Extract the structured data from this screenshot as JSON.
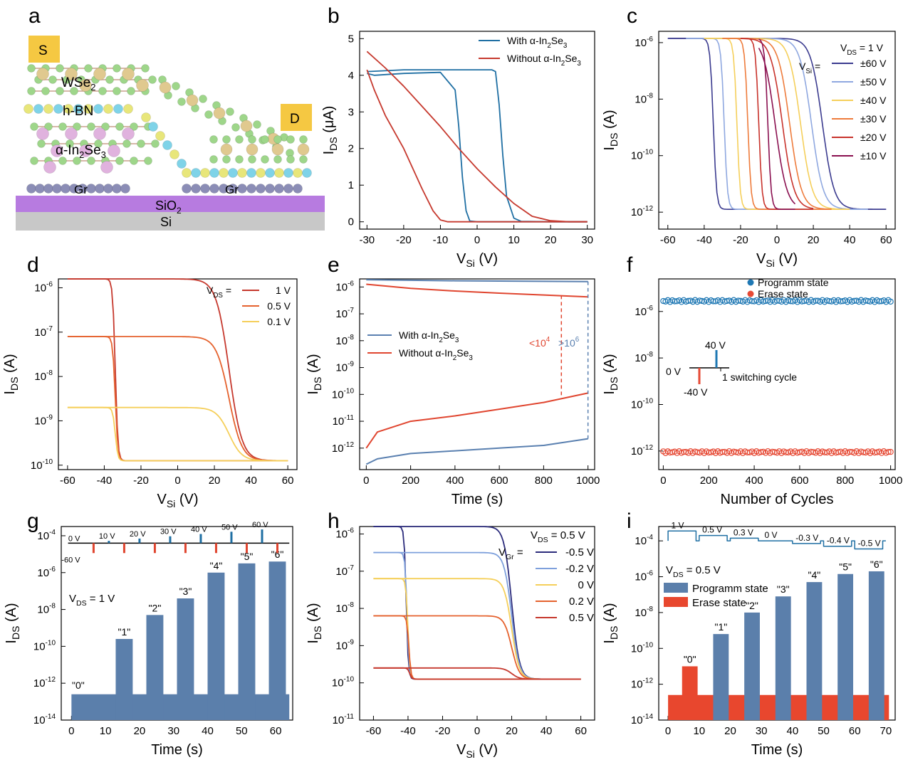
{
  "panels": {
    "a": {
      "label": "a",
      "texts": {
        "s": "S",
        "d": "D",
        "wse2": "WSe",
        "wse2_sub": "2",
        "hbn": "h-BN",
        "inse_a": "α-In",
        "inse_sub1": "2",
        "inse_b": "Se",
        "inse_sub2": "3",
        "gr1": "Gr",
        "gr2": "Gr",
        "sio2": "SiO",
        "sio2_sub": "2",
        "si": "Si"
      },
      "colors": {
        "s_pad": "#f5c842",
        "d_pad": "#f5c842",
        "sio2": "#b77be0",
        "si": "#c8c8c8",
        "atom_green": "#9ed68a",
        "atom_tan": "#e0c98f",
        "atom_pink": "#e0b2de",
        "atom_cyan": "#7fd3e8",
        "atom_yellow": "#e8e67a",
        "atom_gr": "#8b8db6"
      }
    },
    "b": {
      "label": "b",
      "xlabel": "V",
      "xlabel_sub": "Si",
      "xlabel_unit": " (V)",
      "ylabel": "I",
      "ylabel_sub": "DS",
      "ylabel_unit": " (μA)",
      "xticks": [
        "-30",
        "-20",
        "-10",
        "0",
        "10",
        "20",
        "30"
      ],
      "yticks": [
        "0",
        "1",
        "2",
        "3",
        "4",
        "5"
      ],
      "legend": [
        {
          "a": "With α-In",
          "b": "2",
          "c": "Se",
          "d": "3",
          "color": "#1f6fa3"
        },
        {
          "a": "Without α-In",
          "b": "2",
          "c": "Se",
          "d": "3",
          "color": "#c6392e"
        }
      ]
    },
    "c": {
      "label": "c",
      "xlabel": "V",
      "xlabel_sub": "Si",
      "xlabel_unit": " (V)",
      "ylabel": "I",
      "ylabel_sub": "DS",
      "ylabel_unit": " (A)",
      "xticks": [
        "-60",
        "-40",
        "-20",
        "0",
        "20",
        "40",
        "60"
      ],
      "yticks": [
        "10",
        "10",
        "10",
        "10"
      ],
      "yexp": [
        "-12",
        "-10",
        "-8",
        "-6"
      ],
      "header": {
        "a": "V",
        "b": "DS",
        "c": " = 1 V"
      },
      "vsi": {
        "a": "V",
        "b": "Si",
        "c": " ="
      },
      "legend": [
        {
          "t": "±60 V",
          "color": "#3b3b8f"
        },
        {
          "t": "±50 V",
          "color": "#8fa8e0"
        },
        {
          "t": "±40 V",
          "color": "#f5cf5a"
        },
        {
          "t": "±30 V",
          "color": "#ee7b3b"
        },
        {
          "t": "±20 V",
          "color": "#c8322b"
        },
        {
          "t": "±10 V",
          "color": "#8a0f4f"
        }
      ]
    },
    "d": {
      "label": "d",
      "xlabel": "V",
      "xlabel_sub": "Si",
      "xlabel_unit": " (V)",
      "ylabel": "I",
      "ylabel_sub": "DS",
      "ylabel_unit": " (A)",
      "xticks": [
        "-60",
        "-40",
        "-20",
        "0",
        "20",
        "40",
        "60"
      ],
      "yticks": [
        "10",
        "10",
        "10",
        "10",
        "10"
      ],
      "yexp": [
        "-10",
        "-9",
        "-8",
        "-7",
        "-6"
      ],
      "header": {
        "a": "V",
        "b": "DS",
        "c": " ="
      },
      "legend": [
        {
          "t": "1 V",
          "color": "#c6392e"
        },
        {
          "t": "0.5 V",
          "color": "#e5622e"
        },
        {
          "t": "0.1 V",
          "color": "#f5cf5a"
        }
      ]
    },
    "e": {
      "label": "e",
      "xlabel": "Time (s)",
      "ylabel": "I",
      "ylabel_sub": "DS",
      "ylabel_unit": " (A)",
      "xticks": [
        "0",
        "200",
        "400",
        "600",
        "800",
        "1000"
      ],
      "yticks": [
        "10",
        "10",
        "10",
        "10",
        "10",
        "10",
        "10"
      ],
      "yexp": [
        "-12",
        "-11",
        "-10",
        "-9",
        "-8",
        "-7",
        "-6"
      ],
      "legend": [
        {
          "a": "With α-In",
          "b": "2",
          "c": "Se",
          "d": "3",
          "color": "#5a80b0"
        },
        {
          "a": "Without α-In",
          "b": "2",
          "c": "Se",
          "d": "3",
          "color": "#e0452f"
        }
      ],
      "ann1": {
        "a": "<10",
        "b": "4"
      },
      "ann2": {
        "a": ">10",
        "b": "6"
      }
    },
    "f": {
      "label": "f",
      "xlabel": "Number of Cycles",
      "ylabel": "I",
      "ylabel_sub": "DS",
      "ylabel_unit": " (A)",
      "xticks": [
        "0",
        "200",
        "400",
        "600",
        "800",
        "1000"
      ],
      "yticks": [
        "10",
        "10",
        "10",
        "10"
      ],
      "yexp": [
        "-12",
        "-10",
        "-8",
        "-6"
      ],
      "legend": [
        {
          "t": "Programm state",
          "color": "#1f78b4"
        },
        {
          "t": "Erase state",
          "color": "#e64a35"
        }
      ],
      "inset": {
        "v0": "0 V",
        "v40": "40 V",
        "vm40": "-40 V",
        "cycle": "1 switching cycle"
      }
    },
    "g": {
      "label": "g",
      "xlabel": "Time (s)",
      "ylabel": "I",
      "ylabel_sub": "DS",
      "ylabel_unit": " (A)",
      "xticks": [
        "0",
        "10",
        "20",
        "30",
        "40",
        "50",
        "60"
      ],
      "yticks": [
        "10",
        "10",
        "10",
        "10",
        "10",
        "10"
      ],
      "yexp": [
        "-14",
        "-12",
        "-10",
        "-8",
        "-6",
        "-4"
      ],
      "vds": {
        "a": "V",
        "b": "DS",
        "c": " = 1 V"
      },
      "pulses": [
        "0 V",
        "10 V",
        "20 V",
        "30 V",
        "40 V",
        "50 V",
        "60 V"
      ],
      "neg": "-60 V",
      "states": [
        "\"0\"",
        "\"1\"",
        "\"2\"",
        "\"3\"",
        "\"4\"",
        "\"5\"",
        "\"6\""
      ]
    },
    "h": {
      "label": "h",
      "xlabel": "V",
      "xlabel_sub": "Si",
      "xlabel_unit": " (V)",
      "ylabel": "I",
      "ylabel_sub": "DS",
      "ylabel_unit": " (A)",
      "xticks": [
        "-60",
        "-40",
        "-20",
        "0",
        "20",
        "40",
        "60"
      ],
      "yticks": [
        "10",
        "10",
        "10",
        "10",
        "10",
        "10"
      ],
      "yexp": [
        "-11",
        "-10",
        "-9",
        "-8",
        "-7",
        "-6"
      ],
      "header": {
        "a": "V",
        "b": "DS",
        "c": " = 0.5 V"
      },
      "vgr": {
        "a": "V",
        "b": "Gr",
        "c": " ="
      },
      "legend": [
        {
          "t": "-0.5 V",
          "color": "#2c2c7c"
        },
        {
          "t": "-0.2 V",
          "color": "#7ea0dc"
        },
        {
          "t": "0 V",
          "color": "#f5cf5a"
        },
        {
          "t": "0.2 V",
          "color": "#e5622e"
        },
        {
          "t": "0.5 V",
          "color": "#c6392e"
        }
      ]
    },
    "i": {
      "label": "i",
      "xlabel": "Time (s)",
      "ylabel": "I",
      "ylabel_sub": "DS",
      "ylabel_unit": " (A)",
      "xticks": [
        "0",
        "10",
        "20",
        "30",
        "40",
        "50",
        "60",
        "70"
      ],
      "yticks": [
        "10",
        "10",
        "10",
        "10",
        "10",
        "10"
      ],
      "yexp": [
        "-14",
        "-12",
        "-10",
        "-8",
        "-6",
        "-4"
      ],
      "vds": {
        "a": "V",
        "b": "DS",
        "c": " = 0.5 V"
      },
      "pulses": [
        "1 V",
        "0.5 V",
        "0.3 V",
        "0 V",
        "-0.3 V",
        "-0.4 V",
        "-0.5 V"
      ],
      "legend": [
        {
          "t": "Programm state",
          "color": "#5b7fab"
        },
        {
          "t": "Erase state",
          "color": "#e8472e"
        }
      ],
      "states": [
        "\"0\"",
        "\"1\"",
        "\"2\"",
        "\"3\"",
        "\"4\"",
        "\"5\"",
        "\"6\""
      ]
    }
  },
  "chart_data": [
    {
      "panel": "b",
      "type": "line",
      "xlim": [
        -32,
        32
      ],
      "ylim": [
        -0.2,
        5.2
      ],
      "xlabel": "VSi (V)",
      "ylabel": "IDS (μA)",
      "series": [
        {
          "name": "With α-In2Se3",
          "color": "#1f6fa3",
          "x": [
            -30,
            -28,
            -20,
            -10,
            -6,
            -5,
            -4,
            -3,
            -2,
            0,
            10,
            20,
            30
          ],
          "y": [
            4.05,
            4.0,
            4.05,
            4.08,
            3.6,
            2.6,
            1.2,
            0.3,
            0.02,
            0,
            0,
            0,
            0
          ]
        },
        {
          "name": "With α-In2Se3 (return)",
          "color": "#1f6fa3",
          "x": [
            30,
            20,
            12,
            10,
            8,
            7,
            6,
            5,
            4,
            0,
            -10,
            -20,
            -30
          ],
          "y": [
            0,
            0,
            0.01,
            0.1,
            0.7,
            1.8,
            3.2,
            4.1,
            4.15,
            4.15,
            4.15,
            4.15,
            4.1
          ]
        },
        {
          "name": "Without α-In2Se3",
          "color": "#c6392e",
          "x": [
            -30,
            -25,
            -20,
            -15,
            -10,
            -5,
            0,
            5,
            10,
            15,
            20,
            25,
            30
          ],
          "y": [
            4.65,
            4.2,
            3.7,
            3.15,
            2.6,
            2.0,
            1.45,
            0.95,
            0.5,
            0.15,
            0.03,
            0,
            0
          ]
        },
        {
          "name": "Without α-In2Se3 (return)",
          "color": "#c6392e",
          "x": [
            30,
            20,
            10,
            0,
            -5,
            -8,
            -10,
            -12,
            -15,
            -20,
            -25,
            -28,
            -30
          ],
          "y": [
            0,
            0,
            0,
            0,
            0,
            0,
            0.05,
            0.3,
            0.9,
            2.0,
            2.9,
            3.6,
            4.15
          ]
        }
      ]
    },
    {
      "panel": "c",
      "type": "line",
      "xlim": [
        -65,
        65
      ],
      "ylog": true,
      "ylim_exp": [
        -12.6,
        -5.6
      ],
      "xlabel": "VSi (V)",
      "ylabel": "IDS (A)",
      "series": [
        {
          "name": "±60 V",
          "color": "#3b3b8f",
          "vth_fwd": -35,
          "vth_rev": 25
        },
        {
          "name": "±50 V",
          "color": "#8fa8e0",
          "vth_fwd": -29,
          "vth_rev": 19
        },
        {
          "name": "±40 V",
          "color": "#f5cf5a",
          "vth_fwd": -22,
          "vth_rev": 13
        },
        {
          "name": "±30 V",
          "color": "#ee7b3b",
          "vth_fwd": -16,
          "vth_rev": 7
        },
        {
          "name": "±20 V",
          "color": "#c8322b",
          "vth_fwd": -10,
          "vth_rev": 3
        },
        {
          "name": "±10 V",
          "color": "#8a0f4f",
          "vth_fwd": -5,
          "vth_rev": -1
        }
      ]
    },
    {
      "panel": "d",
      "type": "line",
      "xlim": [
        -65,
        65
      ],
      "ylog": true,
      "ylim_exp": [
        -10.1,
        -5.8
      ],
      "xlabel": "VSi (V)",
      "ylabel": "IDS (A)",
      "series": [
        {
          "name": "1 V",
          "color": "#c6392e",
          "on": -5.8,
          "off": -9.9
        },
        {
          "name": "0.5 V",
          "color": "#e5622e",
          "on": -7.1,
          "off": -9.9
        },
        {
          "name": "0.1 V",
          "color": "#f5cf5a",
          "on": -8.7,
          "off": -9.9
        }
      ]
    },
    {
      "panel": "e",
      "type": "line",
      "xlim": [
        -30,
        1030
      ],
      "ylog": true,
      "ylim_exp": [
        -12.8,
        -5.7
      ],
      "xlabel": "Time (s)",
      "ylabel": "IDS (A)",
      "series": [
        {
          "name": "With α-In2Se3 (on)",
          "color": "#5a80b0",
          "x": [
            0,
            200,
            400,
            600,
            800,
            1000
          ],
          "y_exp": [
            -5.73,
            -5.75,
            -5.77,
            -5.78,
            -5.79,
            -5.8
          ]
        },
        {
          "name": "Without α-In2Se3 (on)",
          "color": "#e0452f",
          "x": [
            0,
            200,
            400,
            600,
            800,
            1000
          ],
          "y_exp": [
            -5.9,
            -6.05,
            -6.15,
            -6.23,
            -6.3,
            -6.37
          ]
        },
        {
          "name": "Without α-In2Se3 (off)",
          "color": "#e0452f",
          "x": [
            0,
            50,
            200,
            400,
            600,
            800,
            1000
          ],
          "y_exp": [
            -12.0,
            -11.4,
            -11.0,
            -10.8,
            -10.55,
            -10.3,
            -9.95
          ]
        },
        {
          "name": "With α-In2Se3 (off)",
          "color": "#5a80b0",
          "x": [
            0,
            50,
            200,
            400,
            600,
            800,
            1000
          ],
          "y_exp": [
            -12.6,
            -12.4,
            -12.2,
            -12.1,
            -12.0,
            -11.9,
            -11.65
          ]
        }
      ]
    },
    {
      "panel": "f",
      "type": "scatter",
      "xlim": [
        -20,
        1020
      ],
      "ylog": true,
      "ylim_exp": [
        -12.8,
        -4.6
      ],
      "xlabel": "Number of Cycles",
      "ylabel": "IDS (A)",
      "series": [
        {
          "name": "Programm state",
          "color": "#1f78b4",
          "y_exp": -5.55
        },
        {
          "name": "Erase state",
          "color": "#e64a35",
          "y_exp": -12.05
        }
      ]
    },
    {
      "panel": "g",
      "type": "bar",
      "xlim": [
        -3,
        65
      ],
      "ylog": true,
      "ylim_exp": [
        -14,
        -3.5
      ],
      "xlabel": "Time (s)",
      "ylabel": "IDS (A)",
      "categories": [
        "\"0\"",
        "\"1\"",
        "\"2\"",
        "\"3\"",
        "\"4\"",
        "\"5\"",
        "\"6\""
      ],
      "values_exp": [
        -12.6,
        -9.6,
        -8.3,
        -7.4,
        -6.0,
        -5.5,
        -5.4
      ],
      "baseline_exp": -12.6
    },
    {
      "panel": "h",
      "type": "line",
      "xlim": [
        -68,
        68
      ],
      "ylog": true,
      "ylim_exp": [
        -11,
        -5.8
      ],
      "xlabel": "VSi (V)",
      "ylabel": "IDS (A)",
      "series": [
        {
          "name": "-0.5 V",
          "color": "#2c2c7c",
          "on_exp": -5.8
        },
        {
          "name": "-0.2 V",
          "color": "#7ea0dc",
          "on_exp": -6.5
        },
        {
          "name": "0 V",
          "color": "#f5cf5a",
          "on_exp": -7.2
        },
        {
          "name": "0.2 V",
          "color": "#e5622e",
          "on_exp": -8.2
        },
        {
          "name": "0.5 V",
          "color": "#c6392e",
          "on_exp": -9.6
        }
      ]
    },
    {
      "panel": "i",
      "type": "bar",
      "xlim": [
        -3,
        73
      ],
      "ylog": true,
      "ylim_exp": [
        -14,
        -3.2
      ],
      "xlabel": "Time (s)",
      "ylabel": "IDS (A)",
      "categories": [
        "\"0\"",
        "\"1\"",
        "\"2\"",
        "\"3\"",
        "\"4\"",
        "\"5\"",
        "\"6\""
      ],
      "values_exp": [
        -11.0,
        -9.2,
        -8.0,
        -7.1,
        -6.3,
        -5.85,
        -5.7
      ],
      "baseline_exp": -12.6
    }
  ]
}
